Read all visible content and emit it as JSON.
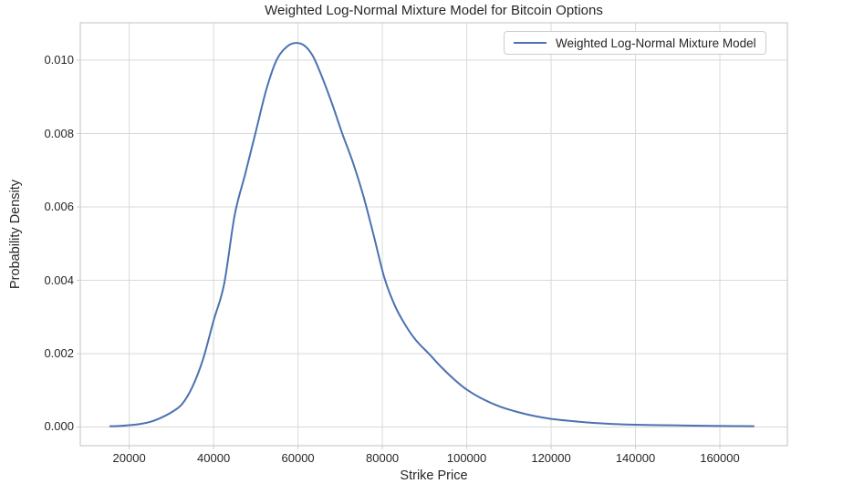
{
  "chart_data": {
    "type": "line",
    "title": "Weighted Log-Normal Mixture Model for Bitcoin Options",
    "xlabel": "Strike Price",
    "ylabel": "Probability Density",
    "grid": true,
    "legend_position": "upper right",
    "xlim": [
      8400,
      176000
    ],
    "ylim": [
      -0.00051,
      0.01102
    ],
    "xticks": [
      20000,
      40000,
      60000,
      80000,
      100000,
      120000,
      140000,
      160000
    ],
    "xtick_labels": [
      "20000",
      "40000",
      "60000",
      "80000",
      "100000",
      "120000",
      "140000",
      "160000"
    ],
    "yticks": [
      0.0,
      0.002,
      0.004,
      0.006,
      0.008,
      0.01
    ],
    "ytick_labels": [
      "0.000",
      "0.002",
      "0.004",
      "0.006",
      "0.008",
      "0.010"
    ],
    "colors": {
      "line": "#4C72B0",
      "grid": "#d9d9d9",
      "spine": "#cccccc",
      "text": "#262626",
      "background": "#ffffff"
    },
    "series": [
      {
        "name": "Weighted Log-Normal Mixture Model",
        "color": "#4C72B0",
        "peak": {
          "x": 59500,
          "y": 0.01047
        },
        "x": [
          15500,
          18000,
          20000,
          22500,
          25000,
          27500,
          30000,
          32500,
          35000,
          37500,
          40000,
          42500,
          45000,
          47500,
          50000,
          52500,
          55000,
          57500,
          59500,
          61500,
          63500,
          65500,
          68000,
          70500,
          73000,
          75500,
          78000,
          80500,
          83000,
          85500,
          88000,
          91000,
          94000,
          97000,
          100000,
          104000,
          108000,
          112000,
          116000,
          120000,
          125000,
          130000,
          135000,
          140000,
          146000,
          152000,
          158000,
          163000,
          168000
        ],
        "y": [
          2e-05,
          3e-05,
          5e-05,
          8e-05,
          0.00014,
          0.00025,
          0.0004,
          0.00062,
          0.0011,
          0.00185,
          0.0029,
          0.0039,
          0.00578,
          0.0069,
          0.00805,
          0.0092,
          0.01002,
          0.01038,
          0.01047,
          0.0104,
          0.01012,
          0.0096,
          0.00884,
          0.008,
          0.00722,
          0.0063,
          0.0052,
          0.00406,
          0.0033,
          0.00277,
          0.00236,
          0.002,
          0.00163,
          0.0013,
          0.00102,
          0.00075,
          0.00055,
          0.00041,
          0.0003,
          0.00022,
          0.00016,
          0.00011,
          8e-05,
          6e-05,
          5e-05,
          4e-05,
          3e-05,
          2.5e-05,
          2.2e-05
        ]
      }
    ]
  }
}
